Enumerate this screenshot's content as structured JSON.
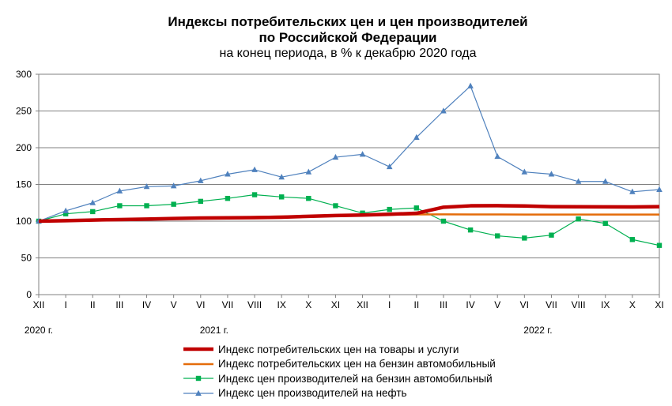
{
  "chart_data": {
    "type": "line",
    "title": "Индексы потребительских цен и цен производителей",
    "title_line2": "по Российской Федерации",
    "subtitle": "на конец периода, в % к декабрю 2020 года",
    "categories": [
      "XII",
      "I",
      "II",
      "III",
      "IV",
      "V",
      "VI",
      "VII",
      "VIII",
      "IX",
      "X",
      "XI",
      "XII",
      "I",
      "II",
      "III",
      "IV",
      "V",
      "VI",
      "VII",
      "VIII",
      "IX",
      "X",
      "XI"
    ],
    "year_labels": [
      {
        "label": "2020 г.",
        "category_index": 0
      },
      {
        "label": "2021 г.",
        "category_index": 6.5
      },
      {
        "label": "2022 г.",
        "category_index": 18.5
      }
    ],
    "ylim": [
      0,
      300
    ],
    "yticks": [
      0,
      50,
      100,
      150,
      200,
      250,
      300
    ],
    "grid": true,
    "legend_position": "bottom",
    "series": [
      {
        "name": "Индекс потребительских цен на товары и услуги",
        "color": "#c00000",
        "marker": "none",
        "values": [
          100,
          100.7,
          101.5,
          102.2,
          102.8,
          103.6,
          104.3,
          104.6,
          104.8,
          105.4,
          106.6,
          107.6,
          108.4,
          109.4,
          110.7,
          119.0,
          120.9,
          121.1,
          120.7,
          119.8,
          119.6,
          119.5,
          119.4,
          119.8
        ]
      },
      {
        "name": "Индекс потребительских цен на бензин автомобильный",
        "color": "#e46c0a",
        "marker": "none",
        "values": [
          100,
          100.6,
          101.6,
          102.0,
          102.8,
          103.3,
          104.1,
          104.9,
          105.8,
          106.4,
          106.9,
          107.9,
          108.6,
          108.8,
          109.1,
          109.3,
          109.2,
          109.1,
          109.0,
          109.0,
          109.0,
          109.0,
          109.0,
          109.0
        ]
      },
      {
        "name": "Индекс цен производителей на бензин автомобильный",
        "color": "#00b050",
        "marker": "square",
        "values": [
          100,
          110,
          113,
          121,
          121,
          123,
          127,
          131,
          136,
          133,
          131,
          121,
          111,
          116,
          118,
          100,
          88,
          80,
          77,
          81,
          103,
          97,
          75,
          67
        ]
      },
      {
        "name": "Индекс цен производителей на нефть",
        "color": "#4f81bd",
        "marker": "triangle",
        "values": [
          100,
          114,
          125,
          141,
          147,
          148,
          155,
          164,
          170,
          160,
          167,
          187,
          191,
          174,
          214,
          250,
          284,
          188,
          167,
          164,
          154,
          154,
          140,
          143
        ]
      }
    ]
  }
}
